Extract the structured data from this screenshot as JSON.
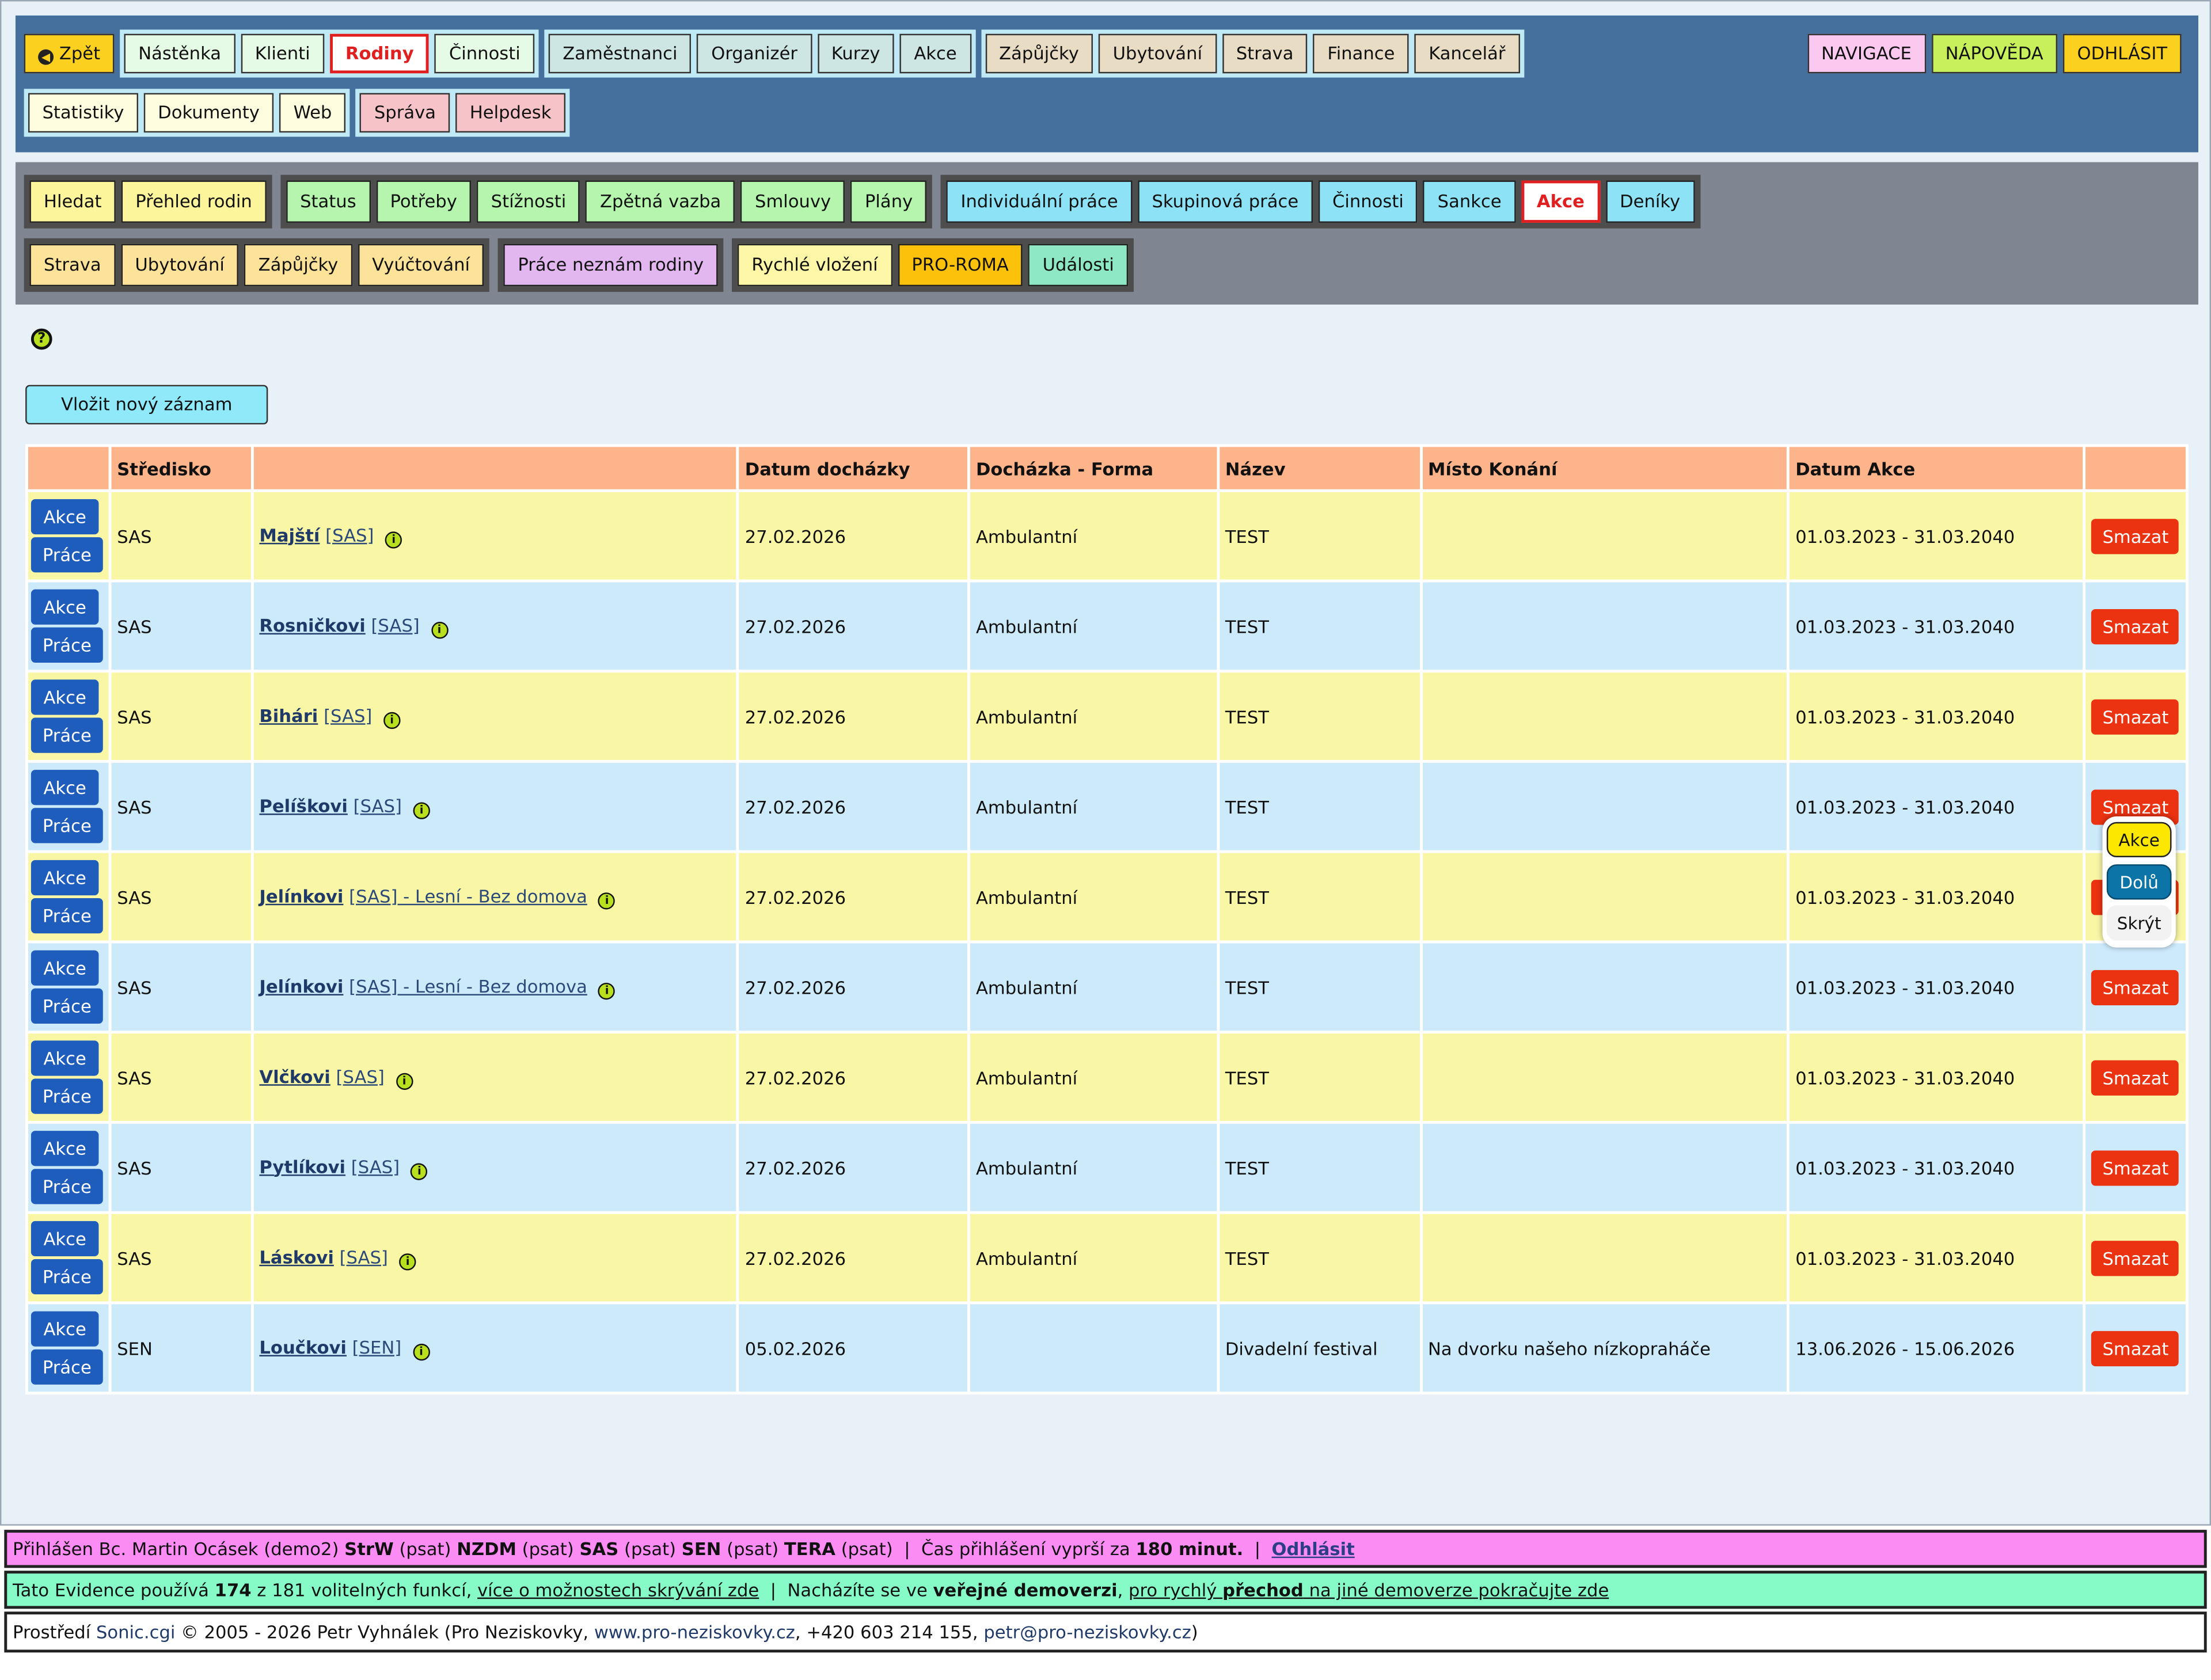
{
  "topnav": {
    "back": "Zpět",
    "group1": [
      "Nástěnka",
      "Klienti",
      "Rodiny",
      "Činnosti"
    ],
    "group2": [
      "Zaměstnanci",
      "Organizér",
      "Kurzy",
      "Akce"
    ],
    "group3": [
      "Zápůjčky",
      "Ubytování",
      "Strava",
      "Finance",
      "Kancelář"
    ],
    "group4": [
      "Statistiky",
      "Dokumenty",
      "Web"
    ],
    "group5": [
      "Správa",
      "Helpdesk"
    ],
    "right": [
      "NAVIGACE",
      "NÁPOVĚDA",
      "ODHLÁSIT"
    ]
  },
  "subnav": {
    "g1": [
      "Hledat",
      "Přehled rodin"
    ],
    "g2": [
      "Status",
      "Potřeby",
      "Stížnosti",
      "Zpětná vazba",
      "Smlouvy",
      "Plány"
    ],
    "g3": [
      "Individuální práce",
      "Skupinová práce",
      "Činnosti",
      "Sankce",
      "Akce",
      "Deníky"
    ],
    "g4": [
      "Strava",
      "Ubytování",
      "Zápůjčky",
      "Vyúčtování"
    ],
    "g5": [
      "Práce neznám rodiny"
    ],
    "g6": [
      "Rychlé vložení",
      "PRO-ROMA",
      "Události"
    ]
  },
  "new_record": "Vložit nový záznam",
  "table": {
    "headers": [
      "",
      "Středisko",
      "",
      "Datum docházky",
      "Docházka - Forma",
      "Název",
      "Místo Konání",
      "Datum Akce",
      ""
    ],
    "row_btn_akce": "Akce",
    "row_btn_prace": "Práce",
    "delete_label": "Smazat",
    "rows": [
      {
        "stredisko": "SAS",
        "rodina": "Majští",
        "tag": "[SAS]",
        "suffix": "",
        "datum": "27.02.2026",
        "forma": "Ambulantní",
        "nazev": "TEST",
        "misto": "",
        "akce": "01.03.2023 - 31.03.2040"
      },
      {
        "stredisko": "SAS",
        "rodina": "Rosničkovi",
        "tag": "[SAS]",
        "suffix": "",
        "datum": "27.02.2026",
        "forma": "Ambulantní",
        "nazev": "TEST",
        "misto": "",
        "akce": "01.03.2023 - 31.03.2040"
      },
      {
        "stredisko": "SAS",
        "rodina": "Bihári",
        "tag": "[SAS]",
        "suffix": "",
        "datum": "27.02.2026",
        "forma": "Ambulantní",
        "nazev": "TEST",
        "misto": "",
        "akce": "01.03.2023 - 31.03.2040"
      },
      {
        "stredisko": "SAS",
        "rodina": "Pelíškovi",
        "tag": "[SAS]",
        "suffix": "",
        "datum": "27.02.2026",
        "forma": "Ambulantní",
        "nazev": "TEST",
        "misto": "",
        "akce": "01.03.2023 - 31.03.2040"
      },
      {
        "stredisko": "SAS",
        "rodina": "Jelínkovi",
        "tag": "[SAS]",
        "suffix": " - Lesní - Bez domova",
        "datum": "27.02.2026",
        "forma": "Ambulantní",
        "nazev": "TEST",
        "misto": "",
        "akce": "01.03.2023 - 31.03.2040"
      },
      {
        "stredisko": "SAS",
        "rodina": "Jelínkovi",
        "tag": "[SAS]",
        "suffix": " - Lesní - Bez domova",
        "datum": "27.02.2026",
        "forma": "Ambulantní",
        "nazev": "TEST",
        "misto": "",
        "akce": "01.03.2023 - 31.03.2040"
      },
      {
        "stredisko": "SAS",
        "rodina": "Vlčkovi",
        "tag": "[SAS]",
        "suffix": "",
        "datum": "27.02.2026",
        "forma": "Ambulantní",
        "nazev": "TEST",
        "misto": "",
        "akce": "01.03.2023 - 31.03.2040"
      },
      {
        "stredisko": "SAS",
        "rodina": "Pytlíkovi",
        "tag": "[SAS]",
        "suffix": "",
        "datum": "27.02.2026",
        "forma": "Ambulantní",
        "nazev": "TEST",
        "misto": "",
        "akce": "01.03.2023 - 31.03.2040"
      },
      {
        "stredisko": "SAS",
        "rodina": "Láskovi",
        "tag": "[SAS]",
        "suffix": "",
        "datum": "27.02.2026",
        "forma": "Ambulantní",
        "nazev": "TEST",
        "misto": "",
        "akce": "01.03.2023 - 31.03.2040"
      },
      {
        "stredisko": "SEN",
        "rodina": "Loučkovi",
        "tag": "[SEN]",
        "suffix": "",
        "datum": "05.02.2026",
        "forma": "",
        "nazev": "Divadelní festival",
        "misto": "Na dvorku našeho nízkopraháče",
        "akce": "13.06.2026 - 15.06.2026"
      }
    ]
  },
  "popup": {
    "akce": "Akce",
    "dolu": "Dolů",
    "skryt": "Skrýt"
  },
  "footer": {
    "login": {
      "prefix": "Přihlášen Bc. Martin Ocásek (demo2) ",
      "roles": [
        {
          "code": "StrW",
          "perm": " (psat) "
        },
        {
          "code": "NZDM",
          "perm": " (psat) "
        },
        {
          "code": "SAS",
          "perm": " (psat) "
        },
        {
          "code": "SEN",
          "perm": " (psat) "
        },
        {
          "code": "TERA",
          "perm": " (psat)"
        }
      ],
      "sep": "  |  ",
      "expire_prefix": "Čas přihlášení vyprší za ",
      "expire_value": "180 minut.",
      "logout": "Odhlásit"
    },
    "features": {
      "p1": "Tato Evidence používá ",
      "used": "174",
      "p2": " z 181 volitelných funkcí, ",
      "link1": "více o možnostech skrývání zde",
      "sep": "  |  ",
      "p3": "Nacházíte se ve ",
      "public": "veřejné demoverzi",
      "p4": ", ",
      "link2a": "pro rychlý ",
      "link2b": "přechod",
      "link2c": " na jiné demoverze pokračujte zde"
    },
    "copyright": {
      "p1": "Prostředí ",
      "sonic": "Sonic.cgi",
      "p2": " © 2005 - 2026 Petr Vyhnálek (Pro Neziskovky, ",
      "web": "www.pro-neziskovky.cz",
      "p3": ", +420 603 214 155, ",
      "mail": "petr@pro-neziskovky.cz",
      "p4": ")"
    }
  },
  "icons": {
    "back": "arrow-left-icon",
    "help": "question-icon",
    "info": "info-icon"
  },
  "colors": {
    "header_bg": "#456f9c",
    "subnav_bg": "#7f8591",
    "delete": "#eb3211",
    "row_btn": "#1f5dbd"
  }
}
